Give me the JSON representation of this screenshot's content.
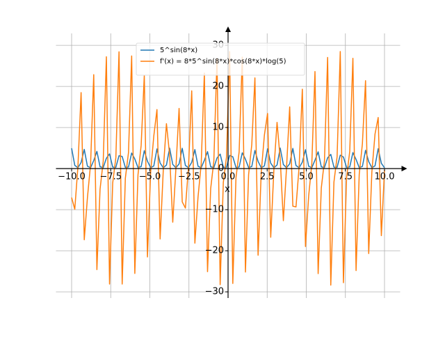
{
  "chart_data": {
    "type": "line",
    "x_label": "x",
    "x": [
      -10,
      -9.798,
      -9.596,
      -9.394,
      -9.192,
      -8.99,
      -8.788,
      -8.586,
      -8.384,
      -8.182,
      -7.98,
      -7.778,
      -7.576,
      -7.374,
      -7.172,
      -6.97,
      -6.768,
      -6.566,
      -6.364,
      -6.162,
      -5.96,
      -5.758,
      -5.556,
      -5.354,
      -5.152,
      -4.949,
      -4.747,
      -4.545,
      -4.343,
      -4.141,
      -3.939,
      -3.737,
      -3.535,
      -3.333,
      -3.131,
      -2.929,
      -2.727,
      -2.525,
      -2.323,
      -2.121,
      -1.919,
      -1.717,
      -1.515,
      -1.313,
      -1.111,
      -0.909,
      -0.707,
      -0.505,
      -0.303,
      -0.101,
      0.101,
      0.303,
      0.505,
      0.707,
      0.909,
      1.111,
      1.313,
      1.515,
      1.717,
      1.919,
      2.121,
      2.323,
      2.525,
      2.727,
      2.929,
      3.131,
      3.333,
      3.535,
      3.737,
      3.939,
      4.141,
      4.343,
      4.545,
      4.747,
      4.949,
      5.152,
      5.354,
      5.556,
      5.758,
      5.96,
      6.162,
      6.364,
      6.566,
      6.768,
      6.97,
      7.172,
      7.374,
      7.576,
      7.778,
      7.98,
      8.182,
      8.384,
      8.586,
      8.788,
      8.99,
      9.192,
      9.394,
      9.596,
      9.798,
      10
    ],
    "series": [
      {
        "name": "5^sin(8*x)",
        "color": "#1f77b4",
        "values": [
          4.951,
          0.779,
          0.207,
          1.482,
          4.67,
          0.587,
          0.225,
          1.951,
          4.189,
          0.45,
          0.257,
          2.513,
          3.584,
          0.354,
          0.307,
          3.141,
          2.941,
          0.289,
          0.381,
          3.781,
          2.329,
          0.245,
          0.488,
          4.358,
          1.793,
          0.218,
          0.64,
          4.783,
          1.355,
          0.203,
          0.853,
          4.989,
          1.014,
          0.2,
          1.142,
          4.935,
          0.758,
          0.208,
          1.522,
          4.632,
          0.572,
          0.227,
          2.0,
          4.135,
          0.44,
          0.261,
          2.571,
          3.523,
          0.347,
          0.312,
          3.203,
          2.881,
          0.284,
          0.389,
          3.838,
          2.274,
          0.242,
          0.5,
          4.403,
          1.747,
          0.216,
          0.658,
          4.813,
          1.318,
          0.203,
          0.877,
          4.995,
          0.986,
          0.201,
          1.174,
          4.916,
          0.737,
          0.209,
          1.563,
          4.593,
          0.557,
          0.23,
          2.051,
          4.081,
          0.429,
          0.265,
          2.628,
          3.462,
          0.34,
          0.319,
          3.264,
          2.821,
          0.279,
          0.398,
          3.895,
          2.22,
          0.239,
          0.513,
          4.451,
          1.702,
          0.214,
          0.676,
          4.841,
          1.283,
          0.202
        ]
      },
      {
        "name": "f'(x) = 8*5^sin(8*x)*cos(8*x)*log(5)",
        "color": "#ff7f0e",
        "values": [
          -7.04,
          -9.9,
          0.53,
          18.5,
          -17.32,
          -7.13,
          1.08,
          22.85,
          -24.59,
          -5.03,
          1.77,
          27.23,
          -28.11,
          -3.49,
          2.68,
          28.43,
          -28.1,
          -2.36,
          3.92,
          27.42,
          -25.52,
          -1.53,
          5.62,
          22.69,
          -21.51,
          -0.9,
          7.92,
          14.36,
          -17.13,
          -0.38,
          10.93,
          3.45,
          -13.05,
          0.1,
          14.65,
          -8.1,
          -9.61,
          0.58,
          18.92,
          -18.15,
          -6.9,
          1.14,
          23.24,
          -25.09,
          -4.87,
          1.84,
          26.81,
          -28.25,
          -3.37,
          2.78,
          28.48,
          -27.96,
          -2.27,
          4.06,
          27.14,
          -25.18,
          -1.47,
          5.81,
          22.08,
          -21.1,
          -0.85,
          8.18,
          13.41,
          -16.72,
          -0.33,
          11.25,
          2.35,
          -12.69,
          0.14,
          15.03,
          -9.15,
          -9.32,
          0.63,
          19.33,
          -18.97,
          -6.69,
          1.2,
          23.63,
          -25.56,
          -4.7,
          1.92,
          27.06,
          -28.36,
          -3.25,
          2.89,
          28.49,
          -27.78,
          -2.19,
          4.21,
          26.84,
          -24.83,
          -1.4,
          6.01,
          21.39,
          -20.68,
          -0.79,
          8.44,
          12.43,
          -16.32,
          -0.29
        ]
      }
    ],
    "xlim": [
      -11,
      11
    ],
    "ylim": [
      -31.5,
      32.9
    ],
    "xticks": [
      {
        "value": -10,
        "label": "−10.0"
      },
      {
        "value": -7.5,
        "label": "−7.5"
      },
      {
        "value": -5,
        "label": "−5.0"
      },
      {
        "value": -2.5,
        "label": "−2.5"
      },
      {
        "value": 0,
        "label": "0.0"
      },
      {
        "value": 2.5,
        "label": "2.5"
      },
      {
        "value": 5,
        "label": "5.0"
      },
      {
        "value": 7.5,
        "label": "7.5"
      },
      {
        "value": 10,
        "label": "10.0"
      }
    ],
    "yticks": [
      {
        "value": -30,
        "label": "−30"
      },
      {
        "value": -20,
        "label": "−20"
      },
      {
        "value": -10,
        "label": "−10"
      },
      0,
      10,
      20,
      30
    ],
    "grid": true,
    "legend": "upper center"
  }
}
